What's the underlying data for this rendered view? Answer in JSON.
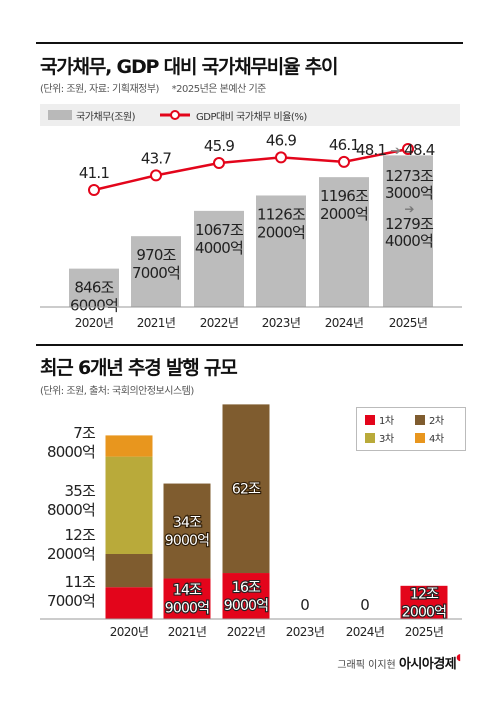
{
  "chart1": {
    "title": "국가채무, GDP 대비 국가채무비율 추이",
    "subtitle": "(단위: 조원, 자료: 기획재정부)",
    "note": "*2025년은 본예산 기준",
    "legend_bar": "국가채무(조원)",
    "legend_line": "GDP대비 국가채무 비율(%)",
    "ratio_2025_from": "48.1",
    "ratio_2025_to": "48.4",
    "debt_2025_from": [
      "1273조",
      "3000억"
    ],
    "debt_2025_to": [
      "1279조",
      "4000억"
    ]
  },
  "chart2": {
    "title": "최근 6개년 추경 발행 규모",
    "subtitle": "(단위: 조원, 출처: 국회의안정보시스템)",
    "legend": [
      "1차",
      "2차",
      "3차",
      "4차"
    ]
  },
  "credit": {
    "label": "그래픽 이지현",
    "brand": "아시아경제"
  },
  "colors": {
    "bar_gray": "#bcbcbc",
    "line_red": "#e3051b",
    "round1": "#e3051b",
    "round2": "#7f5c2f",
    "round3": "#b9aa3a",
    "round4": "#e8961e"
  },
  "chart_data": [
    {
      "type": "bar",
      "categories": [
        "2020년",
        "2021년",
        "2022년",
        "2023년",
        "2024년",
        "2025년"
      ],
      "series": [
        {
          "name": "국가채무(조원)",
          "type": "bar",
          "values": [
            846.6,
            970.7,
            1067.4,
            1126.2,
            1196.2,
            1279.4
          ],
          "labels": [
            [
              "846조",
              "6000억"
            ],
            [
              "970조",
              "7000억"
            ],
            [
              "1067조",
              "4000억"
            ],
            [
              "1126조",
              "2000억"
            ],
            [
              "1196조",
              "2000억"
            ],
            null
          ]
        },
        {
          "name": "GDP대비 국가채무 비율(%)",
          "type": "line",
          "values": [
            41.1,
            43.7,
            45.9,
            46.9,
            46.1,
            48.4
          ],
          "labels": [
            "41.1",
            "43.7",
            "45.9",
            "46.9",
            "46.1",
            null
          ]
        }
      ]
    },
    {
      "type": "bar",
      "stacked": true,
      "categories": [
        "2020년",
        "2021년",
        "2022년",
        "2023년",
        "2024년",
        "2025년"
      ],
      "series": [
        {
          "name": "1차",
          "values": [
            11.7,
            14.9,
            16.9,
            0,
            0,
            12.2
          ],
          "labels": [
            [
              "11조",
              "7000억"
            ],
            [
              "14조",
              "9000억"
            ],
            [
              "16조",
              "9000억"
            ],
            [
              "0"
            ],
            [
              "0"
            ],
            [
              "12조",
              "2000억"
            ]
          ]
        },
        {
          "name": "2차",
          "values": [
            12.2,
            34.9,
            62,
            0,
            0,
            0
          ],
          "labels": [
            [
              "12조",
              "2000억"
            ],
            [
              "34조",
              "9000억"
            ],
            [
              "62조"
            ],
            null,
            null,
            null
          ]
        },
        {
          "name": "3차",
          "values": [
            35.8,
            0,
            0,
            0,
            0,
            0
          ],
          "labels": [
            [
              "35조",
              "8000억"
            ],
            null,
            null,
            null,
            null,
            null
          ]
        },
        {
          "name": "4차",
          "values": [
            7.8,
            0,
            0,
            0,
            0,
            0
          ],
          "labels": [
            [
              "7조",
              "8000억"
            ],
            null,
            null,
            null,
            null,
            null
          ]
        }
      ]
    }
  ]
}
